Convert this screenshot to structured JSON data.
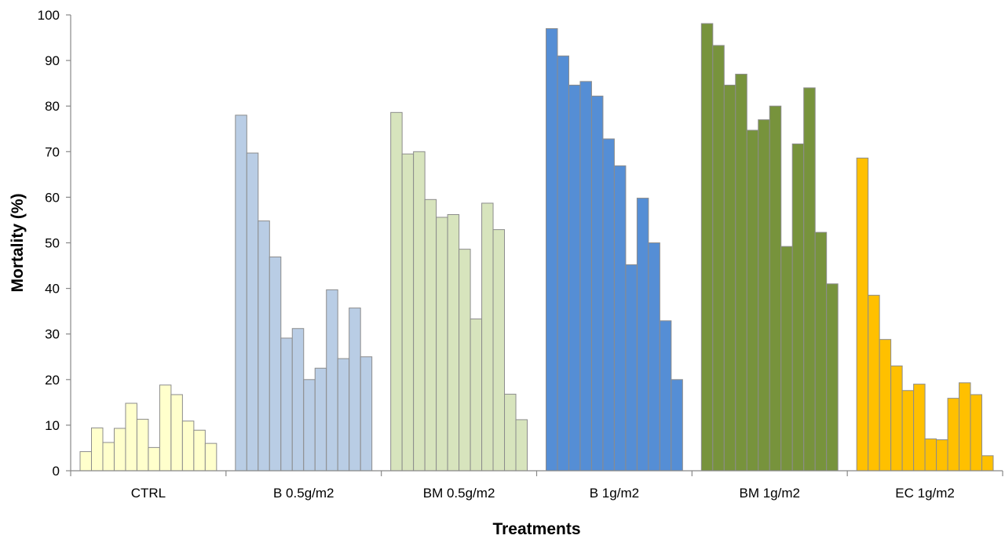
{
  "chart_data": {
    "type": "bar",
    "title": "",
    "xlabel": "Treatments",
    "ylabel": "Mortality (%)",
    "ylim": [
      0,
      100
    ],
    "yticks": [
      0,
      10,
      20,
      30,
      40,
      50,
      60,
      70,
      80,
      90,
      100
    ],
    "grid": false,
    "legend": "none",
    "groups": [
      {
        "name": "CTRL",
        "color": "#ffffcc",
        "values": [
          4.2,
          9.4,
          6.2,
          9.3,
          14.8,
          11.3,
          5.1,
          18.8,
          16.7,
          10.9,
          8.9,
          6.0
        ]
      },
      {
        "name": "B 0.5g/m2",
        "color": "#b9cde5",
        "values": [
          78.0,
          69.7,
          54.8,
          46.9,
          29.1,
          31.2,
          20.0,
          22.5,
          39.7,
          24.6,
          35.7,
          25.0
        ]
      },
      {
        "name": "BM 0.5g/m2",
        "color": "#d7e4bd",
        "values": [
          78.6,
          69.5,
          70.0,
          59.5,
          55.6,
          56.2,
          48.6,
          33.3,
          58.7,
          52.9,
          16.8,
          11.2
        ]
      },
      {
        "name": "B 1g/m2",
        "color": "#558ed5",
        "values": [
          97.0,
          91.0,
          84.6,
          85.4,
          82.2,
          72.8,
          66.9,
          45.2,
          59.8,
          50.0,
          32.9,
          20.0
        ]
      },
      {
        "name": "BM 1g/m2",
        "color": "#77933c",
        "values": [
          98.1,
          93.3,
          84.6,
          87.0,
          74.7,
          77.0,
          80.0,
          49.2,
          71.7,
          84.0,
          52.3,
          41.0
        ]
      },
      {
        "name": "EC 1g/m2",
        "color": "#ffc000",
        "values": [
          68.6,
          38.5,
          28.8,
          23.0,
          17.6,
          19.0,
          7.0,
          6.8,
          15.9,
          19.3,
          16.7,
          3.3
        ]
      }
    ]
  },
  "style": {
    "bar_edge": "#8c8c8c",
    "axis_color": "#888888"
  }
}
